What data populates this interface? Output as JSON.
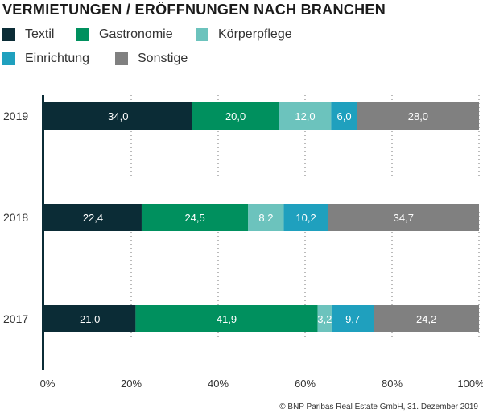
{
  "chart_data": {
    "type": "bar",
    "orientation": "horizontal",
    "stacked": true,
    "title": "VERMIETUNGEN / ERÖFFNUNGEN NACH BRANCHEN",
    "categories": [
      "2019",
      "2018",
      "2017"
    ],
    "series": [
      {
        "name": "Textil",
        "color": "#0b2c36",
        "values": [
          34.0,
          22.4,
          21.0
        ],
        "labels": [
          "34,0",
          "22,4",
          "21,0"
        ]
      },
      {
        "name": "Gastronomie",
        "color": "#00905e",
        "values": [
          20.0,
          24.5,
          41.9
        ],
        "labels": [
          "20,0",
          "24,5",
          "41,9"
        ]
      },
      {
        "name": "Körperpflege",
        "color": "#6cc3bd",
        "values": [
          12.0,
          8.2,
          3.2
        ],
        "labels": [
          "12,0",
          "8,2",
          "3,2"
        ]
      },
      {
        "name": "Einrichtung",
        "color": "#1fa0be",
        "values": [
          6.0,
          10.2,
          9.7
        ],
        "labels": [
          "6,0",
          "10,2",
          "9,7"
        ]
      },
      {
        "name": "Sonstige",
        "color": "#808080",
        "values": [
          28.0,
          34.7,
          24.2
        ],
        "labels": [
          "28,0",
          "34,7",
          "24,2"
        ]
      }
    ],
    "xlim": [
      0,
      100
    ],
    "xticks": [
      0,
      20,
      40,
      60,
      80,
      100
    ],
    "xtick_labels": [
      "0%",
      "20%",
      "40%",
      "60%",
      "80%",
      "100%"
    ],
    "grid": "vertical dotted",
    "legend": "top"
  },
  "footer": "© BNP Paribas Real Estate GmbH, 31. Dezember 2019"
}
